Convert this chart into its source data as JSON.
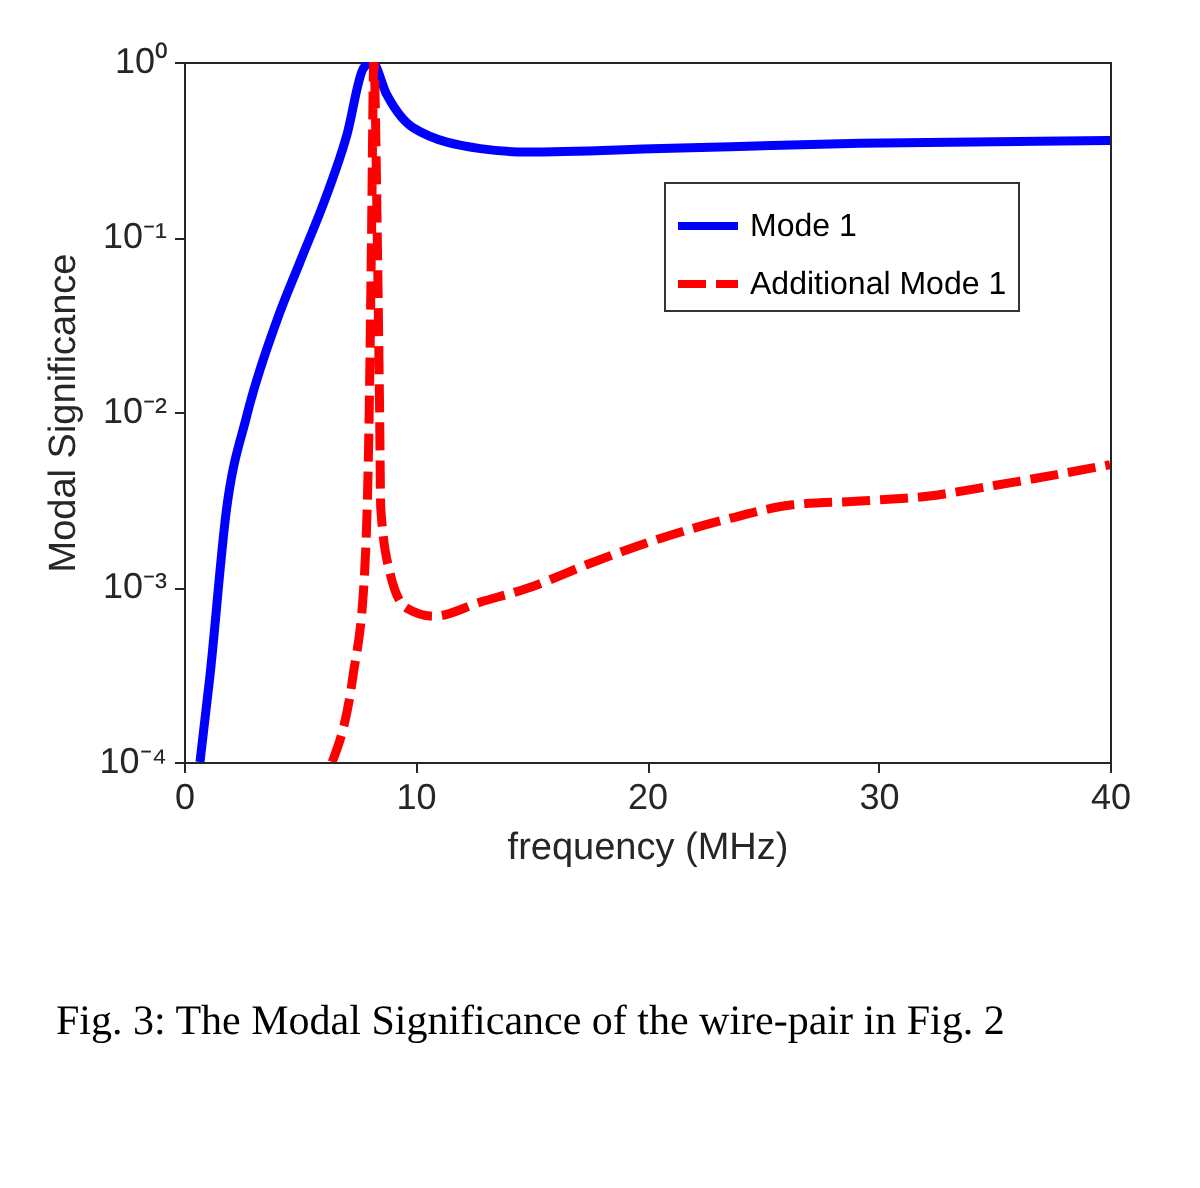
{
  "chart_data": {
    "type": "line",
    "xlabel": "frequency (MHz)",
    "ylabel": "Modal Significance",
    "log": "y",
    "grid": false,
    "legend": "top right",
    "xlim": [
      0,
      40
    ],
    "xticks": [
      0,
      10,
      20,
      30,
      40
    ],
    "ylim": [
      0.0001,
      1
    ],
    "yticks": [
      {
        "value": 0.0001,
        "label": "10⁻⁴"
      },
      {
        "value": 0.001,
        "label": "10⁻³"
      },
      {
        "value": 0.01,
        "label": "10⁻²"
      },
      {
        "value": 0.1,
        "label": "10⁻¹"
      },
      {
        "value": 1,
        "label": "10⁰"
      }
    ],
    "series": [
      {
        "name": "Mode 1",
        "color": "#0000ff",
        "line_style": "solid",
        "x": [
          0.69,
          1.12,
          1.84,
          2.71,
          4.0,
          5.01,
          6.16,
          7.03,
          7.75,
          8.12,
          8.76,
          9.91,
          12.8,
          14.8,
          20.6,
          29.2,
          40
        ],
        "values": [
          0.0001,
          0.00031,
          0.0028,
          0.0095,
          0.033,
          0.072,
          0.173,
          0.38,
          0.92,
          1,
          0.65,
          0.42,
          0.32,
          0.306,
          0.32,
          0.343,
          0.356
        ]
      },
      {
        "name": "Additional Mode 1",
        "color": "#ff0000",
        "line_style": "dashed",
        "x": [
          6.4,
          7.3,
          7.8,
          8.0,
          8.1,
          8.2,
          8.35,
          8.45,
          8.5,
          8.9,
          9.6,
          10.8,
          12.8,
          14.8,
          17.7,
          20.6,
          23.5,
          26.3,
          29.2,
          32.1,
          35,
          40
        ],
        "values": [
          0.0001,
          0.00031,
          0.0012,
          0.01,
          0.1,
          1,
          0.1,
          0.01,
          0.0028,
          0.0012,
          0.00076,
          0.00068,
          0.00082,
          0.00098,
          0.00139,
          0.0019,
          0.00245,
          0.00295,
          0.0031,
          0.0033,
          0.0038,
          0.005
        ]
      }
    ],
    "annotations": [
      "Fig. 3: The Modal Significance of the wire-pair in Fig. 2"
    ]
  }
}
